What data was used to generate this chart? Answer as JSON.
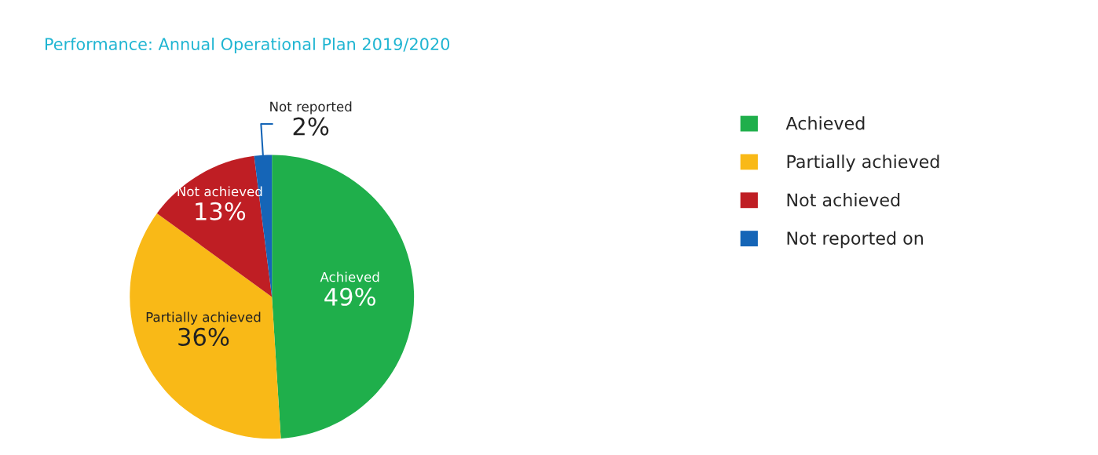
{
  "chart_data": {
    "type": "pie",
    "title": "Performance: Annual Operational Plan 2019/2020",
    "categories": [
      "Achieved",
      "Partially achieved",
      "Not achieved",
      "Not reported on"
    ],
    "values": [
      49,
      36,
      13,
      2
    ],
    "colors": [
      "#1faf4b",
      "#f9b917",
      "#bf1e24",
      "#1565b7"
    ],
    "value_labels": [
      "Achieved\n49%",
      "Partially achieved\n36%",
      "Not achieved\n13%",
      "Not reported\n2%"
    ],
    "legend": "right"
  }
}
